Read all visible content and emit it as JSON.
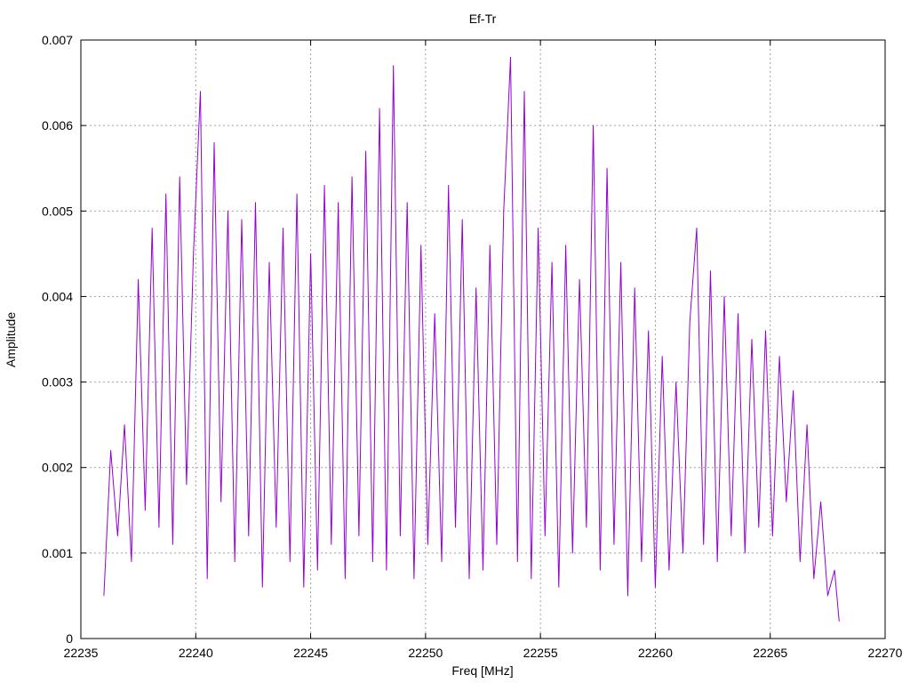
{
  "chart_data": {
    "type": "line",
    "title": "Ef-Tr",
    "xlabel": "Freq [MHz]",
    "ylabel": "Amplitude",
    "xlim": [
      22235,
      22270
    ],
    "ylim": [
      0,
      0.007
    ],
    "x_ticks": [
      "22235",
      "22240",
      "22245",
      "22250",
      "22255",
      "22260",
      "22265",
      "22270"
    ],
    "y_ticks": [
      "0",
      "0.001",
      "0.002",
      "0.003",
      "0.004",
      "0.005",
      "0.006",
      "0.007"
    ],
    "grid": true,
    "legend": "none",
    "series": [
      {
        "color": "#9400d3",
        "x": [
          22236.0,
          22236.3,
          22236.6,
          22236.9,
          22237.2,
          22237.5,
          22237.8,
          22238.1,
          22238.4,
          22238.7,
          22239.0,
          22239.3,
          22239.6,
          22239.9,
          22240.2,
          22240.5,
          22240.8,
          22241.1,
          22241.4,
          22241.7,
          22242.0,
          22242.3,
          22242.6,
          22242.9,
          22243.2,
          22243.5,
          22243.8,
          22244.1,
          22244.4,
          22244.7,
          22245.0,
          22245.3,
          22245.6,
          22245.9,
          22246.2,
          22246.5,
          22246.8,
          22247.1,
          22247.4,
          22247.7,
          22248.0,
          22248.3,
          22248.6,
          22248.9,
          22249.2,
          22249.5,
          22249.8,
          22250.1,
          22250.4,
          22250.7,
          22251.0,
          22251.3,
          22251.6,
          22251.9,
          22252.2,
          22252.5,
          22252.8,
          22253.1,
          22253.4,
          22253.7,
          22254.0,
          22254.3,
          22254.6,
          22254.9,
          22255.2,
          22255.5,
          22255.8,
          22256.1,
          22256.4,
          22256.7,
          22257.0,
          22257.3,
          22257.6,
          22257.9,
          22258.2,
          22258.5,
          22258.8,
          22259.1,
          22259.4,
          22259.7,
          22260.0,
          22260.3,
          22260.6,
          22260.9,
          22261.2,
          22261.5,
          22261.8,
          22262.1,
          22262.4,
          22262.7,
          22263.0,
          22263.3,
          22263.6,
          22263.9,
          22264.2,
          22264.5,
          22264.8,
          22265.1,
          22265.4,
          22265.7,
          22266.0,
          22266.3,
          22266.6,
          22266.9,
          22267.2,
          22267.5,
          22267.8,
          22268.0
        ],
        "y": [
          0.0005,
          0.0022,
          0.0012,
          0.0025,
          0.0009,
          0.0042,
          0.0015,
          0.0048,
          0.0013,
          0.0052,
          0.0011,
          0.0054,
          0.0018,
          0.0045,
          0.0064,
          0.0007,
          0.0058,
          0.0016,
          0.005,
          0.0009,
          0.0049,
          0.0012,
          0.0051,
          0.0006,
          0.0044,
          0.0013,
          0.0048,
          0.0009,
          0.0052,
          0.0006,
          0.0045,
          0.0008,
          0.0053,
          0.0011,
          0.0051,
          0.0007,
          0.0054,
          0.0012,
          0.0057,
          0.0009,
          0.0062,
          0.0008,
          0.0067,
          0.0012,
          0.0051,
          0.0007,
          0.0046,
          0.0011,
          0.0038,
          0.0009,
          0.0053,
          0.0013,
          0.0049,
          0.0007,
          0.0041,
          0.0008,
          0.0046,
          0.0011,
          0.005,
          0.0068,
          0.0009,
          0.0064,
          0.0007,
          0.0048,
          0.0012,
          0.0044,
          0.0006,
          0.0046,
          0.001,
          0.0042,
          0.0013,
          0.006,
          0.0008,
          0.0055,
          0.0011,
          0.0044,
          0.0005,
          0.0041,
          0.0009,
          0.0036,
          0.0006,
          0.0033,
          0.0008,
          0.003,
          0.001,
          0.0037,
          0.0048,
          0.0011,
          0.0043,
          0.0009,
          0.004,
          0.0012,
          0.0038,
          0.001,
          0.0035,
          0.0013,
          0.0036,
          0.0012,
          0.0033,
          0.0016,
          0.0029,
          0.0009,
          0.0025,
          0.0007,
          0.0016,
          0.0005,
          0.0008,
          0.0002
        ]
      }
    ]
  }
}
